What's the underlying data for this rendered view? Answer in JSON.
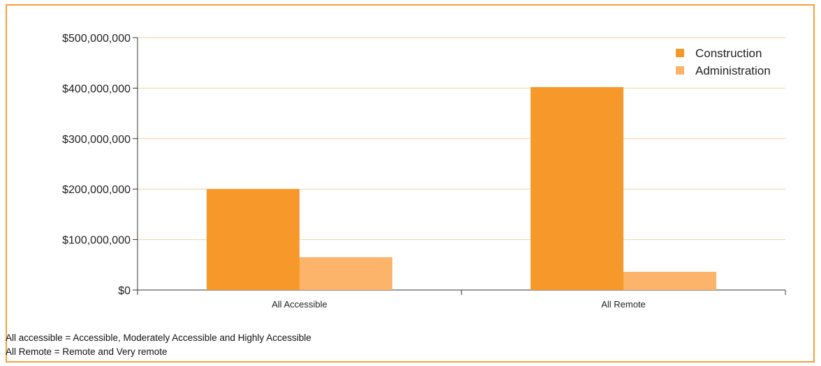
{
  "chart_data": {
    "type": "bar",
    "categories": [
      "All Accessible",
      "All Remote"
    ],
    "series": [
      {
        "name": "Construction",
        "values": [
          200000000,
          402000000
        ],
        "color": "#f7992a"
      },
      {
        "name": "Administration",
        "values": [
          65000000,
          36000000
        ],
        "color": "#fbb469"
      }
    ],
    "ylim": [
      0,
      500000000
    ],
    "yticks": [
      0,
      100000000,
      200000000,
      300000000,
      400000000,
      500000000
    ],
    "ytick_labels": [
      "$0",
      "$100,000,000",
      "$200,000,000",
      "$300,000,000",
      "$400,000,000",
      "$500,000,000"
    ],
    "grid": true,
    "legend_position": "top-right",
    "gridline_color": "#f0d2a6",
    "frame_color": "#f4a03a"
  },
  "notes": [
    "All accessible = Accessible, Moderately Accessible and Highly Accessible",
    "All Remote = Remote and Very remote"
  ]
}
